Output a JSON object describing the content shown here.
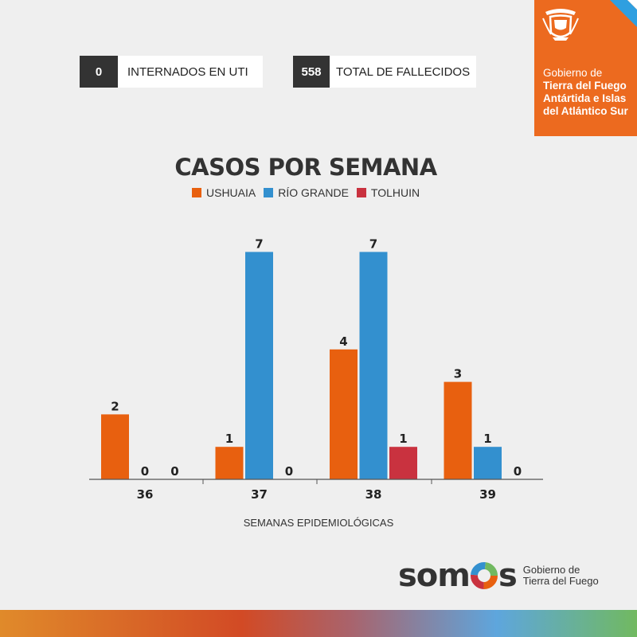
{
  "stats": {
    "icu": {
      "value": "0",
      "label": "INTERNADOS EN UTI"
    },
    "deaths": {
      "value": "558",
      "label": "TOTAL DE FALLECIDOS"
    }
  },
  "gov": {
    "line1": "Gobierno de",
    "line2": "Tierra del Fuego",
    "line3": "Antártida e Islas",
    "line4": "del Atlántico Sur"
  },
  "chart_data": {
    "type": "bar",
    "title": "CASOS POR SEMANA",
    "xlabel": "SEMANAS EPIDEMIOLÓGICAS",
    "ylabel": "",
    "categories": [
      "36",
      "37",
      "38",
      "39"
    ],
    "series": [
      {
        "name": "USHUAIA",
        "color": "#e8600f",
        "values": [
          2,
          1,
          4,
          3
        ]
      },
      {
        "name": "RÍO GRANDE",
        "color": "#3390cf",
        "values": [
          0,
          7,
          7,
          1
        ]
      },
      {
        "name": "TOLHUIN",
        "color": "#c9323f",
        "values": [
          0,
          0,
          1,
          0
        ]
      }
    ],
    "ylim": [
      0,
      7
    ],
    "grid": false,
    "legend_position": "top-center"
  },
  "footer": {
    "brand": "somos",
    "sub1": "Gobierno de",
    "sub2": "Tierra del Fuego"
  }
}
